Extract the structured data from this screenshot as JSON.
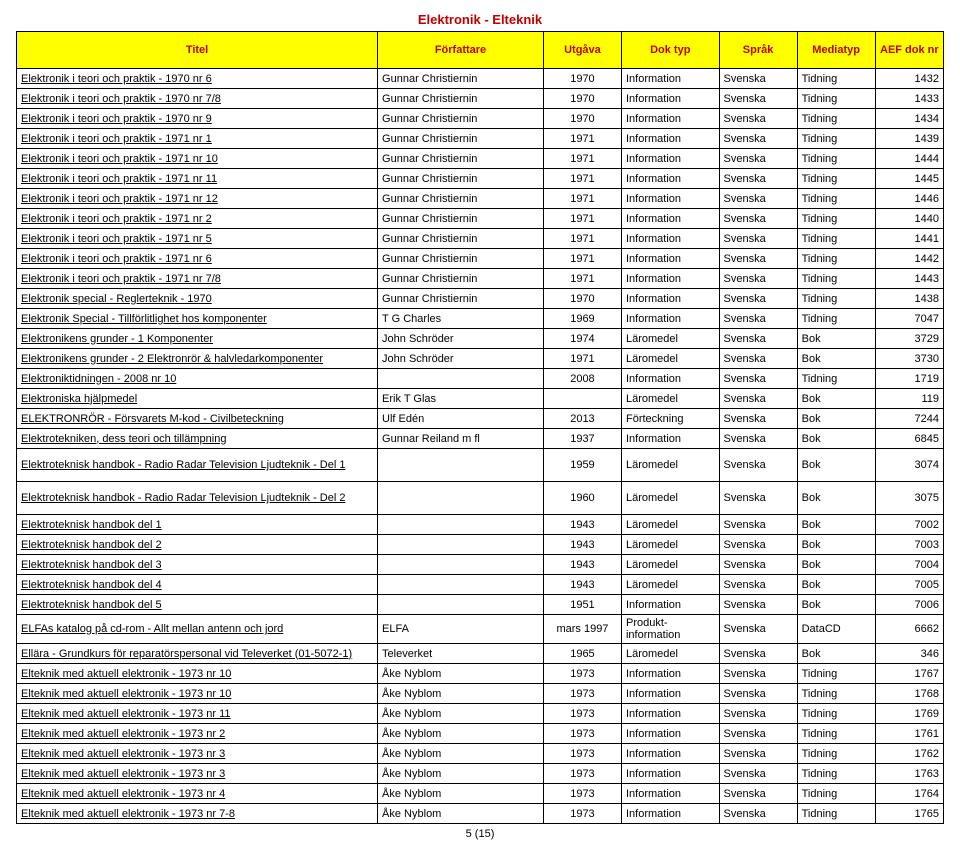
{
  "page": {
    "title": "Elektronik - Elteknik",
    "footer": "5 (15)"
  },
  "table": {
    "headers": {
      "title": "Titel",
      "author": "Författare",
      "edition": "Utgåva",
      "doktyp": "Dok typ",
      "sprak": "Språk",
      "media": "Mediatyp",
      "doknr": "AEF dok nr"
    },
    "rows": [
      {
        "t": "Elektronik i teori och praktik - 1970 nr 6",
        "a": "Gunnar Christiernin",
        "e": "1970",
        "d": "Information",
        "s": "Svenska",
        "m": "Tidning",
        "n": "1432"
      },
      {
        "t": "Elektronik i teori och praktik - 1970 nr 7/8",
        "a": "Gunnar Christiernin",
        "e": "1970",
        "d": "Information",
        "s": "Svenska",
        "m": "Tidning",
        "n": "1433"
      },
      {
        "t": "Elektronik i teori och praktik - 1970 nr 9",
        "a": "Gunnar Christiernin",
        "e": "1970",
        "d": "Information",
        "s": "Svenska",
        "m": "Tidning",
        "n": "1434"
      },
      {
        "t": "Elektronik i teori och praktik - 1971 nr 1",
        "a": "Gunnar Christiernin",
        "e": "1971",
        "d": "Information",
        "s": "Svenska",
        "m": "Tidning",
        "n": "1439"
      },
      {
        "t": "Elektronik i teori och praktik - 1971 nr 10",
        "a": "Gunnar Christiernin",
        "e": "1971",
        "d": "Information",
        "s": "Svenska",
        "m": "Tidning",
        "n": "1444"
      },
      {
        "t": "Elektronik i teori och praktik - 1971 nr 11",
        "a": "Gunnar Christiernin",
        "e": "1971",
        "d": "Information",
        "s": "Svenska",
        "m": "Tidning",
        "n": "1445"
      },
      {
        "t": "Elektronik i teori och praktik - 1971 nr 12",
        "a": "Gunnar Christiernin",
        "e": "1971",
        "d": "Information",
        "s": "Svenska",
        "m": "Tidning",
        "n": "1446"
      },
      {
        "t": "Elektronik i teori och praktik - 1971 nr 2",
        "a": "Gunnar Christiernin",
        "e": "1971",
        "d": "Information",
        "s": "Svenska",
        "m": "Tidning",
        "n": "1440"
      },
      {
        "t": "Elektronik i teori och praktik - 1971 nr 5",
        "a": "Gunnar Christiernin",
        "e": "1971",
        "d": "Information",
        "s": "Svenska",
        "m": "Tidning",
        "n": "1441"
      },
      {
        "t": "Elektronik i teori och praktik - 1971 nr 6",
        "a": "Gunnar Christiernin",
        "e": "1971",
        "d": "Information",
        "s": "Svenska",
        "m": "Tidning",
        "n": "1442"
      },
      {
        "t": "Elektronik i teori och praktik - 1971 nr 7/8",
        "a": "Gunnar Christiernin",
        "e": "1971",
        "d": "Information",
        "s": "Svenska",
        "m": "Tidning",
        "n": "1443"
      },
      {
        "t": "Elektronik special - Reglerteknik - 1970",
        "a": "Gunnar Christiernin",
        "e": "1970",
        "d": "Information",
        "s": "Svenska",
        "m": "Tidning",
        "n": "1438"
      },
      {
        "t": "Elektronik Special - Tillförlitlighet hos komponenter",
        "a": "T G Charles",
        "e": "1969",
        "d": "Information",
        "s": "Svenska",
        "m": "Tidning",
        "n": "7047"
      },
      {
        "t": "Elektronikens grunder - 1 Komponenter",
        "a": "John Schröder",
        "e": "1974",
        "d": "Läromedel",
        "s": "Svenska",
        "m": "Bok",
        "n": "3729"
      },
      {
        "t": "Elektronikens grunder - 2 Elektronrör & halvledarkomponenter",
        "a": "John Schröder",
        "e": "1971",
        "d": "Läromedel",
        "s": "Svenska",
        "m": "Bok",
        "n": "3730"
      },
      {
        "t": "Elektroniktidningen - 2008 nr 10",
        "a": "",
        "e": "2008",
        "d": "Information",
        "s": "Svenska",
        "m": "Tidning",
        "n": "1719"
      },
      {
        "t": "Elektroniska hjälpmedel",
        "a": "Erik T Glas",
        "e": "",
        "d": "Läromedel",
        "s": "Svenska",
        "m": "Bok",
        "n": "119"
      },
      {
        "t": "ELEKTRONRÖR - Försvarets M-kod - Civilbeteckning",
        "a": "Ulf Edén",
        "e": "2013",
        "d": "Förteckning",
        "s": "Svenska",
        "m": "Bok",
        "n": "7244"
      },
      {
        "t": "Elektrotekniken, dess teori och tillämpning",
        "a": "Gunnar Reiland m fl",
        "e": "1937",
        "d": "Information",
        "s": "Svenska",
        "m": "Bok",
        "n": "6845"
      },
      {
        "t": "Elektroteknisk handbok - Radio Radar Television Ljudteknik - Del 1",
        "a": "",
        "e": "1959",
        "d": "Läromedel",
        "s": "Svenska",
        "m": "Bok",
        "n": "3074",
        "tall": true
      },
      {
        "t": "Elektroteknisk handbok - Radio Radar Television Ljudteknik - Del 2",
        "a": "",
        "e": "1960",
        "d": "Läromedel",
        "s": "Svenska",
        "m": "Bok",
        "n": "3075",
        "tall": true
      },
      {
        "t": "Elektroteknisk handbok del 1",
        "a": "",
        "e": "1943",
        "d": "Läromedel",
        "s": "Svenska",
        "m": "Bok",
        "n": "7002"
      },
      {
        "t": "Elektroteknisk handbok del 2",
        "a": "",
        "e": "1943",
        "d": "Läromedel",
        "s": "Svenska",
        "m": "Bok",
        "n": "7003"
      },
      {
        "t": "Elektroteknisk handbok del 3",
        "a": "",
        "e": "1943",
        "d": "Läromedel",
        "s": "Svenska",
        "m": "Bok",
        "n": "7004"
      },
      {
        "t": "Elektroteknisk handbok del 4",
        "a": "",
        "e": "1943",
        "d": "Läromedel",
        "s": "Svenska",
        "m": "Bok",
        "n": "7005"
      },
      {
        "t": "Elektroteknisk handbok del 5",
        "a": "",
        "e": "1951",
        "d": "Information",
        "s": "Svenska",
        "m": "Bok",
        "n": "7006"
      },
      {
        "t": "ELFAs katalog på cd-rom - Allt mellan antenn och jord",
        "a": "ELFA",
        "e": "mars 1997",
        "d": "Produkt-information",
        "s": "Svenska",
        "m": "DataCD",
        "n": "6662",
        "wrap": true
      },
      {
        "t": "Ellära - Grundkurs för reparatörspersonal vid Televerket (01-5072-1)",
        "a": "Televerket",
        "e": "1965",
        "d": "Läromedel",
        "s": "Svenska",
        "m": "Bok",
        "n": "346",
        "wrap": true
      },
      {
        "t": "Elteknik med aktuell elektronik - 1973 nr 10",
        "a": "Åke Nyblom",
        "e": "1973",
        "d": "Information",
        "s": "Svenska",
        "m": "Tidning",
        "n": "1767"
      },
      {
        "t": "Elteknik med aktuell elektronik - 1973 nr 10",
        "a": "Åke Nyblom",
        "e": "1973",
        "d": "Information",
        "s": "Svenska",
        "m": "Tidning",
        "n": "1768"
      },
      {
        "t": "Elteknik med aktuell elektronik - 1973 nr 11",
        "a": "Åke Nyblom",
        "e": "1973",
        "d": "Information",
        "s": "Svenska",
        "m": "Tidning",
        "n": "1769"
      },
      {
        "t": "Elteknik med aktuell elektronik - 1973 nr 2",
        "a": "Åke Nyblom",
        "e": "1973",
        "d": "Information",
        "s": "Svenska",
        "m": "Tidning",
        "n": "1761"
      },
      {
        "t": "Elteknik med aktuell elektronik - 1973 nr 3",
        "a": "Åke Nyblom",
        "e": "1973",
        "d": "Information",
        "s": "Svenska",
        "m": "Tidning",
        "n": "1762"
      },
      {
        "t": "Elteknik med aktuell elektronik - 1973 nr 3",
        "a": "Åke Nyblom",
        "e": "1973",
        "d": "Information",
        "s": "Svenska",
        "m": "Tidning",
        "n": "1763"
      },
      {
        "t": "Elteknik med aktuell elektronik - 1973 nr 4",
        "a": "Åke Nyblom",
        "e": "1973",
        "d": "Information",
        "s": "Svenska",
        "m": "Tidning",
        "n": "1764"
      },
      {
        "t": "Elteknik med aktuell elektronik - 1973 nr 7-8",
        "a": "Åke Nyblom",
        "e": "1973",
        "d": "Information",
        "s": "Svenska",
        "m": "Tidning",
        "n": "1765"
      }
    ]
  }
}
